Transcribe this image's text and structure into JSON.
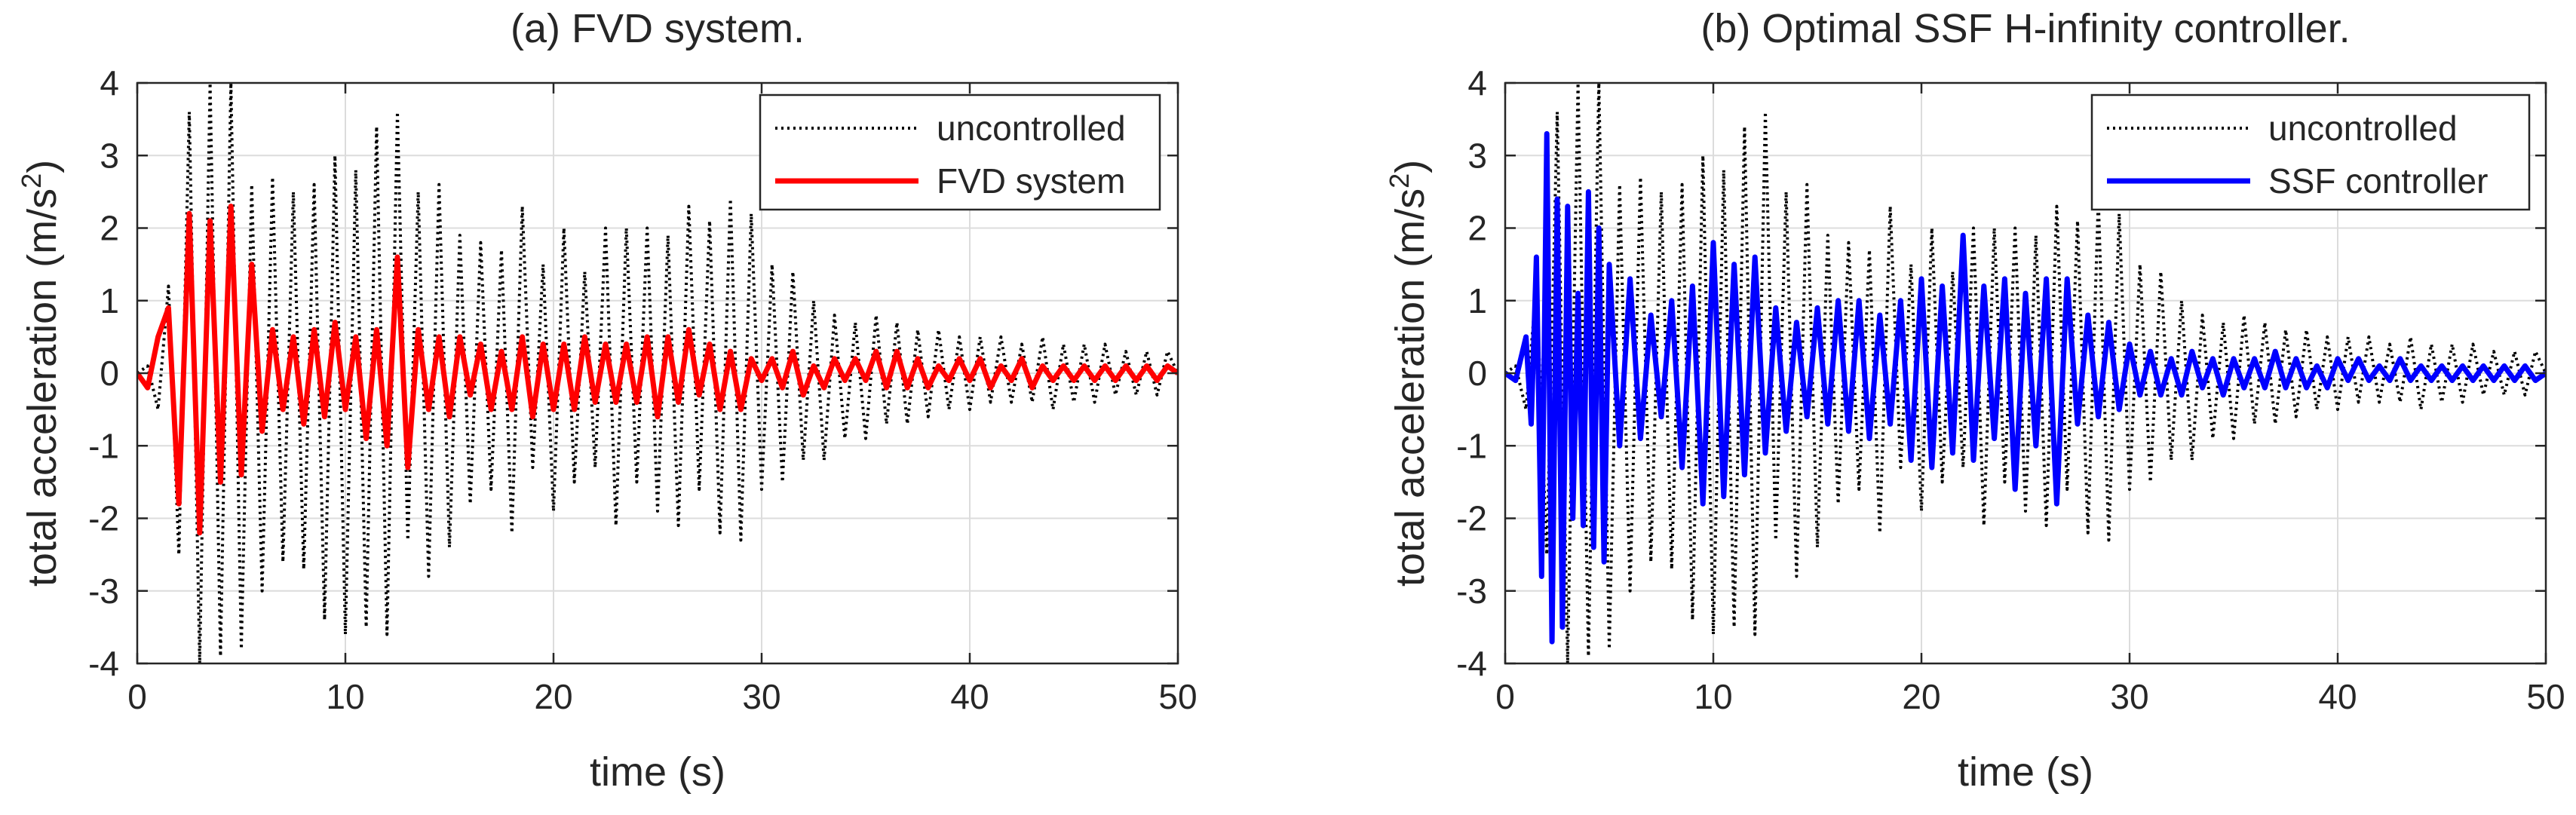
{
  "chart_data": [
    {
      "type": "line",
      "title": "(a) FVD system.",
      "xlabel": "time (s)",
      "ylabel": "total acceleration (m/s",
      "ylabel_sup": "2",
      "ylabel_end": ")",
      "xlim": [
        0,
        50
      ],
      "ylim": [
        -4,
        4
      ],
      "xticks": [
        0,
        10,
        20,
        30,
        40,
        50
      ],
      "yticks": [
        -4,
        -3,
        -2,
        -1,
        0,
        1,
        2,
        3,
        4
      ],
      "grid": true,
      "legend_position": "top-right",
      "series": [
        {
          "name": "uncontrolled",
          "color": "#000000",
          "style": "dotted",
          "x": [
            0,
            0.5,
            1,
            1.5,
            2,
            2.5,
            3,
            3.5,
            4,
            4.5,
            5,
            5.5,
            6,
            6.5,
            7,
            7.5,
            8,
            8.5,
            9,
            9.5,
            10,
            10.5,
            11,
            11.5,
            12,
            12.5,
            13,
            13.5,
            14,
            14.5,
            15,
            15.5,
            16,
            16.5,
            17,
            17.5,
            18,
            18.5,
            19,
            19.5,
            20,
            20.5,
            21,
            21.5,
            22,
            22.5,
            23,
            23.5,
            24,
            24.5,
            25,
            25.5,
            26,
            26.5,
            27,
            27.5,
            28,
            28.5,
            29,
            29.5,
            30,
            30.5,
            31,
            31.5,
            32,
            32.5,
            33,
            33.5,
            34,
            34.5,
            35,
            35.5,
            36,
            36.5,
            37,
            37.5,
            38,
            38.5,
            39,
            39.5,
            40,
            40.5,
            41,
            41.5,
            42,
            42.5,
            43,
            43.5,
            44,
            44.5,
            45,
            45.5,
            46,
            46.5,
            47,
            47.5,
            48,
            48.5,
            49,
            49.5,
            50
          ],
          "y": [
            0,
            0.1,
            -0.5,
            1.2,
            -2.5,
            3.6,
            -4,
            4,
            -3.9,
            4,
            -3.8,
            2.6,
            -3,
            2.7,
            -2.6,
            2.5,
            -2.7,
            2.6,
            -3.4,
            3,
            -3.6,
            2.8,
            -3.5,
            3.4,
            -3.6,
            3.6,
            -2.3,
            2.5,
            -2.8,
            2.6,
            -2.4,
            1.9,
            -1.8,
            1.8,
            -1.6,
            1.7,
            -2.2,
            2.3,
            -1.3,
            1.5,
            -1.9,
            2,
            -1.5,
            1.4,
            -1.3,
            2,
            -2.1,
            2,
            -1.5,
            2,
            -1.9,
            1.9,
            -2.1,
            2.3,
            -1.6,
            2.1,
            -2.2,
            2.4,
            -2.3,
            2.2,
            -1.6,
            1.5,
            -1.5,
            1.4,
            -1.2,
            1,
            -1.2,
            0.8,
            -0.9,
            0.7,
            -0.9,
            0.8,
            -0.7,
            0.7,
            -0.7,
            0.6,
            -0.6,
            0.6,
            -0.5,
            0.5,
            -0.5,
            0.5,
            -0.4,
            0.5,
            -0.4,
            0.4,
            -0.4,
            0.5,
            -0.5,
            0.4,
            -0.4,
            0.4,
            -0.4,
            0.4,
            -0.3,
            0.3,
            -0.3,
            0.3,
            -0.3,
            0.3,
            0
          ]
        },
        {
          "name": "FVD system",
          "color": "#ff0000",
          "style": "solid",
          "x": [
            0,
            0.5,
            1,
            1.5,
            2,
            2.5,
            3,
            3.5,
            4,
            4.5,
            5,
            5.5,
            6,
            6.5,
            7,
            7.5,
            8,
            8.5,
            9,
            9.5,
            10,
            10.5,
            11,
            11.5,
            12,
            12.5,
            13,
            13.5,
            14,
            14.5,
            15,
            15.5,
            16,
            16.5,
            17,
            17.5,
            18,
            18.5,
            19,
            19.5,
            20,
            20.5,
            21,
            21.5,
            22,
            22.5,
            23,
            23.5,
            24,
            24.5,
            25,
            25.5,
            26,
            26.5,
            27,
            27.5,
            28,
            28.5,
            29,
            29.5,
            30,
            30.5,
            31,
            31.5,
            32,
            32.5,
            33,
            33.5,
            34,
            34.5,
            35,
            35.5,
            36,
            36.5,
            37,
            37.5,
            38,
            38.5,
            39,
            39.5,
            40,
            40.5,
            41,
            41.5,
            42,
            42.5,
            43,
            43.5,
            44,
            44.5,
            45,
            45.5,
            46,
            46.5,
            47,
            47.5,
            48,
            48.5,
            49,
            49.5,
            50
          ],
          "y": [
            0,
            -0.2,
            0.5,
            0.9,
            -1.8,
            2.2,
            -2.2,
            2.1,
            -1.5,
            2.3,
            -1.4,
            1.5,
            -0.8,
            0.6,
            -0.5,
            0.5,
            -0.7,
            0.6,
            -0.6,
            0.7,
            -0.5,
            0.5,
            -0.9,
            0.6,
            -1,
            1.6,
            -1.3,
            0.6,
            -0.5,
            0.5,
            -0.6,
            0.5,
            -0.3,
            0.4,
            -0.5,
            0.3,
            -0.5,
            0.5,
            -0.6,
            0.4,
            -0.5,
            0.4,
            -0.5,
            0.5,
            -0.4,
            0.4,
            -0.4,
            0.4,
            -0.4,
            0.5,
            -0.6,
            0.5,
            -0.4,
            0.6,
            -0.3,
            0.4,
            -0.5,
            0.3,
            -0.5,
            0.2,
            -0.1,
            0.2,
            -0.2,
            0.3,
            -0.3,
            0.1,
            -0.2,
            0.2,
            -0.1,
            0.2,
            -0.1,
            0.3,
            -0.2,
            0.3,
            -0.2,
            0.2,
            -0.2,
            0.1,
            -0.1,
            0.2,
            -0.1,
            0.2,
            -0.2,
            0.1,
            -0.1,
            0.2,
            -0.2,
            0.1,
            -0.1,
            0.1,
            -0.1,
            0.1,
            -0.1,
            0.1,
            -0.1,
            0.1,
            -0.1,
            0.1,
            -0.1,
            0.1,
            0
          ]
        }
      ]
    },
    {
      "type": "line",
      "title": "(b) Optimal SSF H-infinity controller.",
      "xlabel": "time (s)",
      "ylabel": "total acceleration (m/s",
      "ylabel_sup": "2",
      "ylabel_end": ")",
      "xlim": [
        0,
        50
      ],
      "ylim": [
        -4,
        4
      ],
      "xticks": [
        0,
        10,
        20,
        30,
        40,
        50
      ],
      "yticks": [
        -4,
        -3,
        -2,
        -1,
        0,
        1,
        2,
        3,
        4
      ],
      "grid": true,
      "legend_position": "top-right",
      "series": [
        {
          "name": "uncontrolled",
          "color": "#000000",
          "style": "dotted",
          "x": [
            0,
            0.5,
            1,
            1.5,
            2,
            2.5,
            3,
            3.5,
            4,
            4.5,
            5,
            5.5,
            6,
            6.5,
            7,
            7.5,
            8,
            8.5,
            9,
            9.5,
            10,
            10.5,
            11,
            11.5,
            12,
            12.5,
            13,
            13.5,
            14,
            14.5,
            15,
            15.5,
            16,
            16.5,
            17,
            17.5,
            18,
            18.5,
            19,
            19.5,
            20,
            20.5,
            21,
            21.5,
            22,
            22.5,
            23,
            23.5,
            24,
            24.5,
            25,
            25.5,
            26,
            26.5,
            27,
            27.5,
            28,
            28.5,
            29,
            29.5,
            30,
            30.5,
            31,
            31.5,
            32,
            32.5,
            33,
            33.5,
            34,
            34.5,
            35,
            35.5,
            36,
            36.5,
            37,
            37.5,
            38,
            38.5,
            39,
            39.5,
            40,
            40.5,
            41,
            41.5,
            42,
            42.5,
            43,
            43.5,
            44,
            44.5,
            45,
            45.5,
            46,
            46.5,
            47,
            47.5,
            48,
            48.5,
            49,
            49.5,
            50
          ],
          "y": [
            0,
            0.1,
            -0.5,
            1.2,
            -2.5,
            3.6,
            -4,
            4,
            -3.9,
            4,
            -3.8,
            2.6,
            -3,
            2.7,
            -2.6,
            2.5,
            -2.7,
            2.6,
            -3.4,
            3,
            -3.6,
            2.8,
            -3.5,
            3.4,
            -3.6,
            3.6,
            -2.3,
            2.5,
            -2.8,
            2.6,
            -2.4,
            1.9,
            -1.8,
            1.8,
            -1.6,
            1.7,
            -2.2,
            2.3,
            -1.3,
            1.5,
            -1.9,
            2,
            -1.5,
            1.4,
            -1.3,
            2,
            -2.1,
            2,
            -1.5,
            2,
            -1.9,
            1.9,
            -2.1,
            2.3,
            -1.6,
            2.1,
            -2.2,
            2.4,
            -2.3,
            2.2,
            -1.6,
            1.5,
            -1.5,
            1.4,
            -1.2,
            1,
            -1.2,
            0.8,
            -0.9,
            0.7,
            -0.9,
            0.8,
            -0.7,
            0.7,
            -0.7,
            0.6,
            -0.6,
            0.6,
            -0.5,
            0.5,
            -0.5,
            0.5,
            -0.4,
            0.5,
            -0.4,
            0.4,
            -0.4,
            0.5,
            -0.5,
            0.4,
            -0.4,
            0.4,
            -0.4,
            0.4,
            -0.3,
            0.3,
            -0.3,
            0.3,
            -0.3,
            0.3,
            0
          ]
        },
        {
          "name": "SSF controller",
          "color": "#0000ff",
          "style": "solid",
          "x": [
            0,
            0.5,
            1,
            1.25,
            1.5,
            1.75,
            2,
            2.25,
            2.5,
            2.75,
            3,
            3.25,
            3.5,
            3.75,
            4,
            4.25,
            4.5,
            4.75,
            5,
            5.5,
            6,
            6.5,
            7,
            7.5,
            8,
            8.5,
            9,
            9.5,
            10,
            10.5,
            11,
            11.5,
            12,
            12.5,
            13,
            13.5,
            14,
            14.5,
            15,
            15.5,
            16,
            16.5,
            17,
            17.5,
            18,
            18.5,
            19,
            19.5,
            20,
            20.5,
            21,
            21.5,
            22,
            22.5,
            23,
            23.5,
            24,
            24.5,
            25,
            25.5,
            26,
            26.5,
            27,
            27.5,
            28,
            28.5,
            29,
            29.5,
            30,
            30.5,
            31,
            31.5,
            32,
            32.5,
            33,
            33.5,
            34,
            34.5,
            35,
            35.5,
            36,
            36.5,
            37,
            37.5,
            38,
            38.5,
            39,
            39.5,
            40,
            40.5,
            41,
            41.5,
            42,
            42.5,
            43,
            43.5,
            44,
            44.5,
            45,
            45.5,
            46,
            46.5,
            47,
            47.5,
            48,
            48.5,
            49,
            49.5,
            50
          ],
          "y": [
            0,
            -0.1,
            0.5,
            -0.7,
            1.6,
            -2.8,
            3.3,
            -3.7,
            2.4,
            -3.5,
            2.3,
            -2,
            1.1,
            -2.1,
            2.5,
            -2.4,
            2,
            -2.6,
            1.5,
            -1,
            1.3,
            -0.9,
            0.8,
            -0.6,
            1,
            -1.3,
            1.2,
            -1.8,
            1.8,
            -1.7,
            1.5,
            -1.4,
            1.6,
            -1.1,
            0.9,
            -0.8,
            0.7,
            -0.6,
            0.9,
            -0.7,
            1,
            -0.8,
            1,
            -0.9,
            0.8,
            -0.7,
            1,
            -1.2,
            1.3,
            -1.3,
            1.2,
            -1.1,
            1.9,
            -1.2,
            1.2,
            -0.9,
            1.3,
            -1.6,
            1.1,
            -1,
            1.3,
            -1.8,
            1.3,
            -0.7,
            0.8,
            -0.6,
            0.7,
            -0.5,
            0.4,
            -0.3,
            0.3,
            -0.3,
            0.2,
            -0.3,
            0.3,
            -0.2,
            0.2,
            -0.3,
            0.2,
            -0.2,
            0.2,
            -0.2,
            0.3,
            -0.2,
            0.2,
            -0.2,
            0.1,
            -0.2,
            0.2,
            -0.1,
            0.2,
            -0.1,
            0.1,
            -0.1,
            0.2,
            -0.1,
            0.1,
            -0.1,
            0.1,
            -0.1,
            0.1,
            -0.1,
            0.1,
            -0.1,
            0.1,
            -0.1,
            0.1,
            -0.1,
            0
          ]
        }
      ]
    }
  ]
}
